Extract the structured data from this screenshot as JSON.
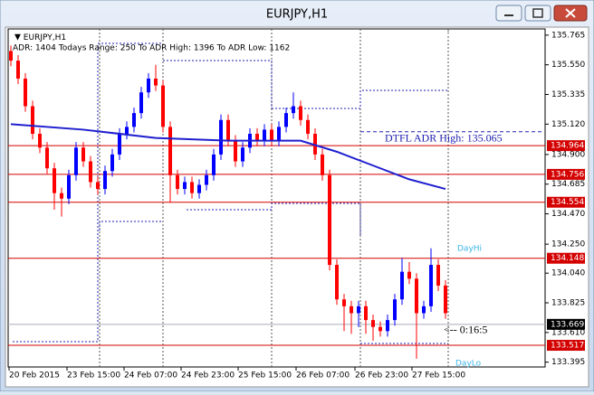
{
  "window": {
    "title": "EURJPY,H1"
  },
  "chart_data": {
    "type": "candlestick",
    "symbol_label": "EURJPY,H1",
    "info_text": "ADR: 1404  Todays Range: 250  To ADR High: 1396  To ADR Low: 1162",
    "up_color": "#0000ff",
    "down_color": "#ff0000",
    "open": [
      135.65,
      135.58,
      135.45,
      135.25,
      135.05,
      134.95,
      134.8,
      134.62,
      134.58,
      134.75,
      134.95,
      134.85,
      134.7,
      134.65,
      134.78,
      134.9,
      135.05,
      135.1,
      135.2,
      135.35,
      135.45,
      135.4,
      135.1,
      134.75,
      134.65,
      134.7,
      134.62,
      134.68,
      134.75,
      134.9,
      135.15,
      135.0,
      134.85,
      134.95,
      135.05,
      135.0,
      135.08,
      135.0,
      135.1,
      135.2,
      135.25,
      135.15,
      135.05,
      134.9,
      134.75,
      134.1,
      133.85,
      133.8,
      133.75,
      133.8,
      133.7,
      133.65,
      133.62,
      133.7,
      133.85,
      134.05,
      134.0,
      133.75,
      133.8,
      134.1,
      133.95
    ],
    "high": [
      135.69,
      135.62,
      135.49,
      135.29,
      135.09,
      134.99,
      134.84,
      134.66,
      134.79,
      134.99,
      134.99,
      134.89,
      134.74,
      134.82,
      134.94,
      135.09,
      135.14,
      135.24,
      135.39,
      135.49,
      135.55,
      135.44,
      135.14,
      134.79,
      134.74,
      134.74,
      134.72,
      134.79,
      134.94,
      135.19,
      135.19,
      135.04,
      134.99,
      135.09,
      135.09,
      135.12,
      135.12,
      135.14,
      135.24,
      135.35,
      135.29,
      135.19,
      135.09,
      134.94,
      134.79,
      134.14,
      133.89,
      133.84,
      133.84,
      133.84,
      133.74,
      133.69,
      133.74,
      133.89,
      134.15,
      134.12,
      134.04,
      133.84,
      134.22,
      134.14,
      133.99
    ],
    "low": [
      135.54,
      135.41,
      135.21,
      135.01,
      134.91,
      134.76,
      134.5,
      134.45,
      134.54,
      134.71,
      134.81,
      134.66,
      134.61,
      134.61,
      134.74,
      134.86,
      135.01,
      135.06,
      135.16,
      135.31,
      135.36,
      135.06,
      134.55,
      134.61,
      134.61,
      134.58,
      134.58,
      134.64,
      134.71,
      134.86,
      134.96,
      134.81,
      134.81,
      134.91,
      134.96,
      134.96,
      134.96,
      134.96,
      135.06,
      135.16,
      135.11,
      135.01,
      134.86,
      134.71,
      134.06,
      133.81,
      133.62,
      133.6,
      133.65,
      133.6,
      133.55,
      133.58,
      133.58,
      133.66,
      133.81,
      133.96,
      133.42,
      133.71,
      133.76,
      133.91,
      133.71
    ],
    "close": [
      135.58,
      135.45,
      135.25,
      135.05,
      134.95,
      134.8,
      134.62,
      134.58,
      134.75,
      134.95,
      134.85,
      134.7,
      134.65,
      134.78,
      134.9,
      135.05,
      135.1,
      135.2,
      135.35,
      135.45,
      135.4,
      135.1,
      134.75,
      134.65,
      134.7,
      134.62,
      134.68,
      134.75,
      134.9,
      135.15,
      135.0,
      134.85,
      134.95,
      135.05,
      135.0,
      135.08,
      135.0,
      135.1,
      135.2,
      135.25,
      135.15,
      135.05,
      134.9,
      134.75,
      134.1,
      133.85,
      133.8,
      133.75,
      133.8,
      133.7,
      133.65,
      133.62,
      133.7,
      133.85,
      134.05,
      134.0,
      133.75,
      133.8,
      134.1,
      133.95,
      133.75
    ],
    "ma": {
      "color": "#1f1fcf",
      "x": [
        0,
        10,
        20,
        30,
        40,
        45,
        50,
        55,
        60
      ],
      "values": [
        135.12,
        135.08,
        135.02,
        135.0,
        135.0,
        134.92,
        134.82,
        134.72,
        134.65
      ]
    },
    "levels": [
      134.964,
      134.756,
      134.554,
      134.148,
      133.517
    ],
    "level_color": "#d40000",
    "current_price": 133.669,
    "adr_high": {
      "value": 135.065,
      "label": "DTFL ADR High: 135.065"
    },
    "day_hi_label": "DayHi",
    "day_lo_label": "DayLo",
    "timer_label": "<-- 0:16:5",
    "ylim": [
      133.36,
      135.81
    ],
    "yticks": [
      135.765,
      {
        "value": 135.55,
        "label": "135.550"
      },
      135.335,
      {
        "value": 135.12,
        "label": "135.120"
      },
      {
        "value": 134.9,
        "label": "134.900"
      },
      134.685,
      {
        "value": 134.47,
        "label": "134.470"
      },
      {
        "value": 134.25,
        "label": "134.250"
      },
      {
        "value": 134.04,
        "label": "134.040"
      },
      133.825,
      {
        "value": 133.61,
        "label": "133.610"
      },
      133.395
    ],
    "xlabels": [
      "20 Feb 2015",
      "23 Feb 15:00",
      "24 Feb 07:00",
      "24 Feb 23:00",
      "25 Feb 15:00",
      "26 Feb 07:00",
      "26 Feb 23:00",
      "27 Feb 15:00"
    ]
  }
}
